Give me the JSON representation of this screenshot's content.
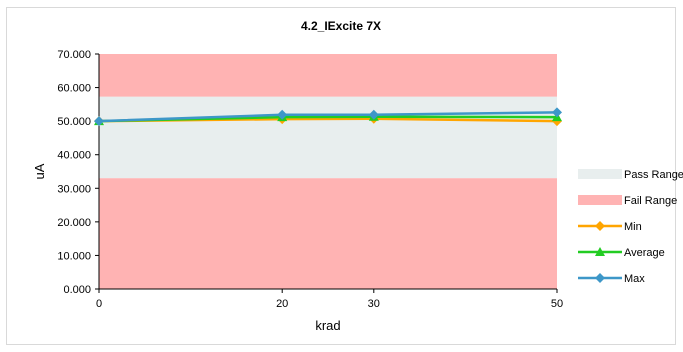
{
  "chart_data": {
    "type": "line",
    "title": "4.2_IExcite 7X",
    "xlabel": "krad",
    "ylabel": "uA",
    "x": [
      0,
      20,
      30,
      50
    ],
    "x_tick_labels": [
      "0",
      "20",
      "30",
      "50"
    ],
    "ylim": [
      0,
      70
    ],
    "y_tick_labels": [
      "0.000",
      "10.000",
      "20.000",
      "30.000",
      "40.000",
      "50.000",
      "60.000",
      "70.000"
    ],
    "bands": [
      {
        "name": "Pass Range",
        "from": 33,
        "to": 57.3,
        "color": "#e8eeee"
      },
      {
        "name": "Fail Range",
        "from": 0,
        "to": 33,
        "color": "#ffb3b3"
      },
      {
        "name": "Fail Range",
        "from": 57.3,
        "to": 70,
        "color": "#ffb3b3"
      }
    ],
    "series": [
      {
        "name": "Min",
        "values": [
          50.0,
          50.6,
          50.7,
          50.0
        ],
        "color": "#ffa500",
        "marker": "diamond"
      },
      {
        "name": "Average",
        "values": [
          50.0,
          51.2,
          51.3,
          51.2
        ],
        "color": "#22cc22",
        "marker": "triangle"
      },
      {
        "name": "Max",
        "values": [
          50.0,
          51.9,
          51.9,
          52.6
        ],
        "color": "#3d97c8",
        "marker": "diamond"
      }
    ],
    "legend": {
      "position": "right",
      "entries": [
        {
          "label": "Pass Range",
          "kind": "band",
          "color": "#e8eeee"
        },
        {
          "label": "Fail Range",
          "kind": "band",
          "color": "#ffb3b3"
        },
        {
          "label": "Min",
          "kind": "line",
          "color": "#ffa500",
          "marker": "diamond"
        },
        {
          "label": "Average",
          "kind": "line",
          "color": "#22cc22",
          "marker": "triangle"
        },
        {
          "label": "Max",
          "kind": "line",
          "color": "#3d97c8",
          "marker": "diamond"
        }
      ]
    },
    "grid": false
  }
}
